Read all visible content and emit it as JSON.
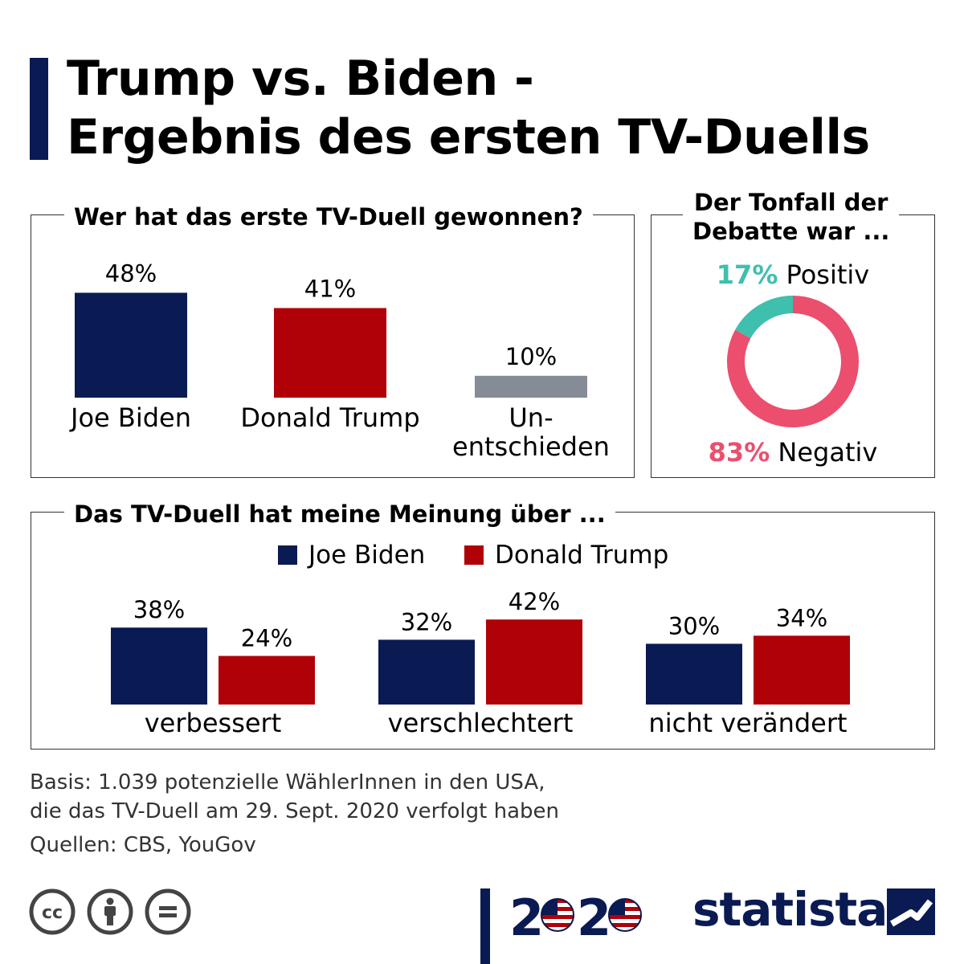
{
  "title_line1": "Trump vs. Biden -",
  "title_line2": "Ergebnis des ersten TV-Duells",
  "colors": {
    "biden": "#0a1a52",
    "trump": "#b00008",
    "undecided": "#868c96",
    "positive": "#3fbfae",
    "negative": "#eb4f6d",
    "accent": "#0a1a52"
  },
  "chart_data": [
    {
      "type": "bar",
      "title": "Wer hat das erste TV-Duell gewonnen?",
      "categories": [
        "Joe Biden",
        "Donald Trump",
        "Un-entschieden"
      ],
      "category_lines": [
        [
          "Joe Biden"
        ],
        [
          "Donald Trump"
        ],
        [
          "Un-",
          "entschieden"
        ]
      ],
      "values": [
        48,
        41,
        10
      ],
      "value_labels": [
        "48%",
        "41%",
        "10%"
      ],
      "unit": "%"
    },
    {
      "type": "pie",
      "title": "Der Tonfall der Debatte war ...",
      "title_lines": [
        "Der Tonfall der",
        "Debatte war ..."
      ],
      "slices": [
        {
          "label": "Positiv",
          "value": 17,
          "value_label": "17%"
        },
        {
          "label": "Negativ",
          "value": 83,
          "value_label": "83%"
        }
      ],
      "donut": true
    },
    {
      "type": "bar",
      "title": "Das TV-Duell hat meine Meinung über ...",
      "categories": [
        "verbessert",
        "verschlechtert",
        "nicht verändert"
      ],
      "series": [
        {
          "name": "Joe Biden",
          "values": [
            38,
            32,
            30
          ],
          "value_labels": [
            "38%",
            "32%",
            "30%"
          ]
        },
        {
          "name": "Donald Trump",
          "values": [
            24,
            42,
            34
          ],
          "value_labels": [
            "24%",
            "42%",
            "34%"
          ]
        }
      ],
      "legend": "top-center",
      "unit": "%"
    }
  ],
  "footer": {
    "basis_line1": "Basis: 1.039 potenzielle WählerInnen in den USA,",
    "basis_line2": "die das TV-Duell am 29. Sept. 2020 verfolgt haben",
    "sources": "Quellen: CBS, YouGov"
  },
  "logos": {
    "election_year": "2020",
    "brand": "statista",
    "license_icons": [
      "cc-icon",
      "attribution-icon",
      "no-derivatives-icon"
    ]
  }
}
